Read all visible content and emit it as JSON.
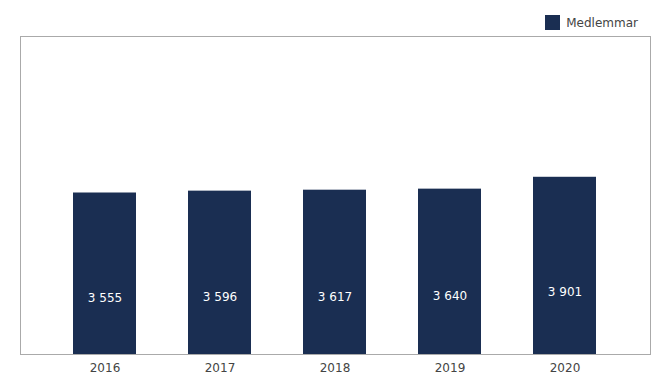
{
  "chart_data": {
    "type": "bar",
    "categories": [
      "2016",
      "2017",
      "2018",
      "2019",
      "2020"
    ],
    "series": [
      {
        "name": "Medlemmar",
        "color": "#1a2e52",
        "values": [
          3555,
          3596,
          3617,
          3640,
          3901
        ],
        "value_labels": [
          "3 555",
          "3 596",
          "3 617",
          "3 640",
          "3 901"
        ]
      }
    ],
    "ylim": [
      0,
      7000
    ],
    "data_labels": true,
    "tick_labels": "x",
    "grid": false,
    "legend": "upper right"
  }
}
